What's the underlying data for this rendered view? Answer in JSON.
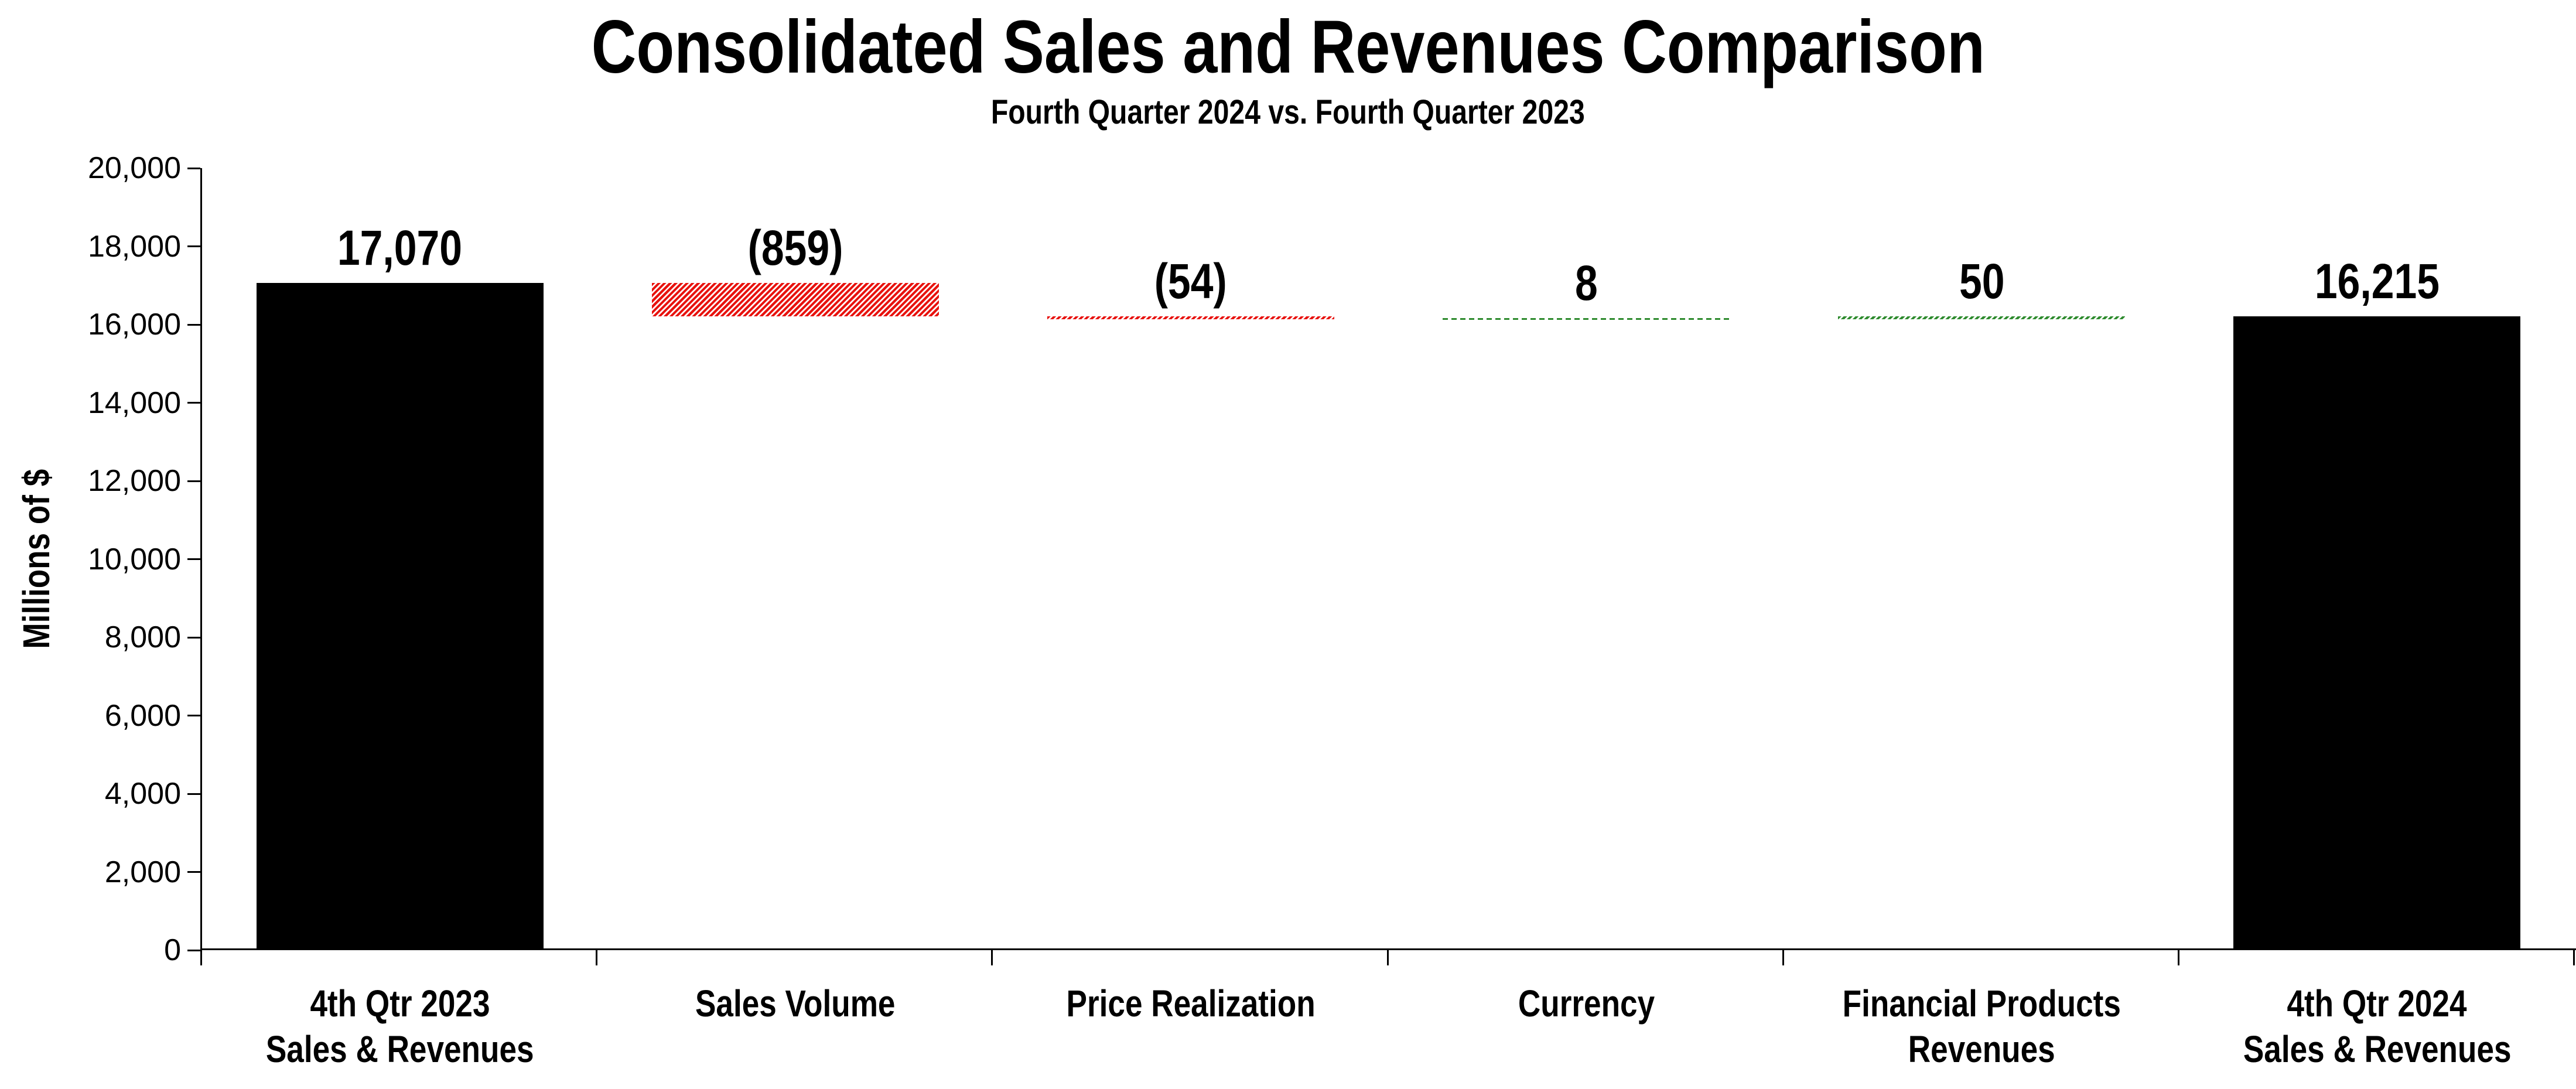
{
  "header": {
    "title": "Consolidated Sales and Revenues Comparison",
    "subtitle": "Fourth Quarter 2024 vs. Fourth Quarter 2023"
  },
  "chart_data": {
    "type": "bar",
    "subtype": "waterfall",
    "title": "Consolidated Sales and Revenues Comparison",
    "subtitle": "Fourth Quarter 2024 vs. Fourth Quarter 2023",
    "ylabel": "Millions of $",
    "ylim": [
      0,
      20000
    ],
    "ytick_step": 2000,
    "ytick_labels": [
      "0",
      "2,000",
      "4,000",
      "6,000",
      "8,000",
      "10,000",
      "12,000",
      "14,000",
      "16,000",
      "18,000",
      "20,000"
    ],
    "grid": false,
    "legend": false,
    "categories": [
      "4th Qtr 2023 Sales & Revenues",
      "Sales Volume",
      "Price Realization",
      "Currency",
      "Financial Products Revenues",
      "4th Qtr 2024 Sales & Revenues"
    ],
    "bars": [
      {
        "category_lines": [
          "4th Qtr 2023",
          "Sales & Revenues"
        ],
        "value_label": "17,070",
        "value": 17070,
        "from": 0,
        "to": 17070,
        "style": "solid-black"
      },
      {
        "category_lines": [
          "Sales Volume"
        ],
        "value_label": "(859)",
        "value": -859,
        "from": 17070,
        "to": 16211,
        "style": "hatch-red"
      },
      {
        "category_lines": [
          "Price Realization"
        ],
        "value_label": "(54)",
        "value": -54,
        "from": 16211,
        "to": 16157,
        "style": "hatch-red"
      },
      {
        "category_lines": [
          "Currency"
        ],
        "value_label": "8",
        "value": 8,
        "from": 16157,
        "to": 16165,
        "style": "dash-green"
      },
      {
        "category_lines": [
          "Financial Products",
          "Revenues"
        ],
        "value_label": "50",
        "value": 50,
        "from": 16165,
        "to": 16215,
        "style": "hatch-green"
      },
      {
        "category_lines": [
          "4th Qtr 2024",
          "Sales & Revenues"
        ],
        "value_label": "16,215",
        "value": 16215,
        "from": 0,
        "to": 16215,
        "style": "solid-black"
      }
    ],
    "colors": {
      "solid_bar": "#000000",
      "negative_hatch": "#e8120e",
      "positive_hatch": "#2e8b2e",
      "axis": "#000000",
      "text": "#000000",
      "background": "#ffffff"
    }
  }
}
